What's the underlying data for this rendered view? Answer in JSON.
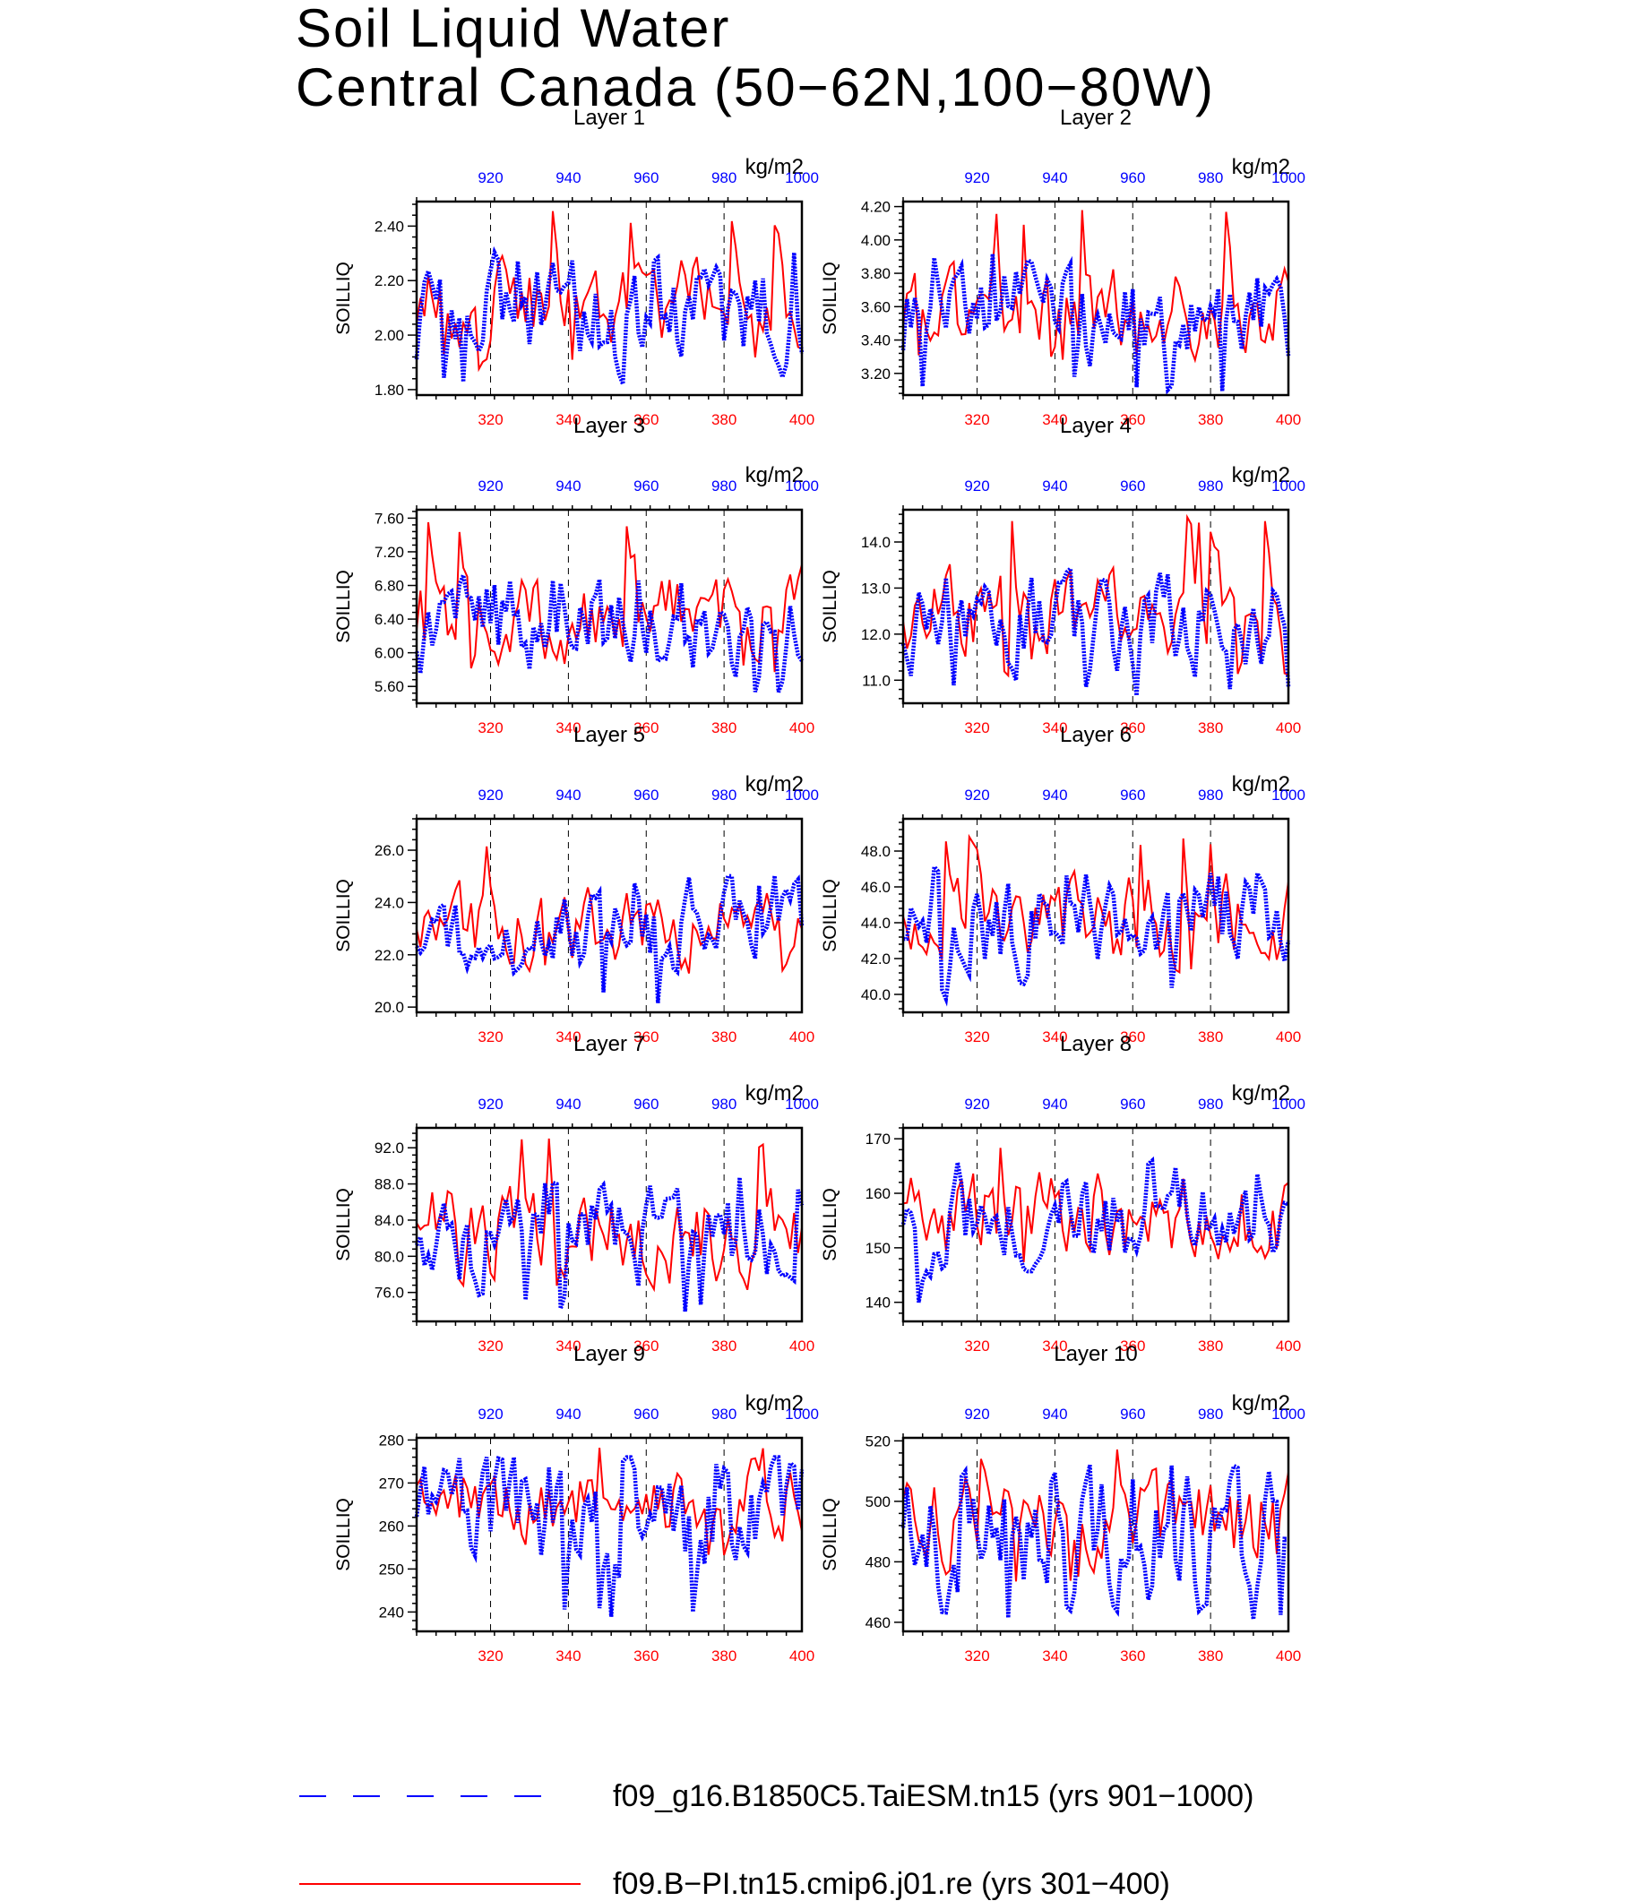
{
  "figure": {
    "title_line1": "Soil Liquid Water",
    "title_line2": "Central Canada (50−62N,100−80W)",
    "colors": {
      "series_a": "#0000ff",
      "series_b": "#ff0000"
    }
  },
  "legend": [
    {
      "label": "f09_g16.B1850C5.TaiESM.tn15 (yrs 901−1000)",
      "color": "#0000ff",
      "style": "dashed"
    },
    {
      "label": "f09.B−PI.tn15.cmip6.j01.re (yrs 301−400)",
      "color": "#ff0000",
      "style": "solid"
    }
  ],
  "chart_data": [
    {
      "type": "line",
      "title": "Layer 1",
      "ylabel": "SOILLIQ",
      "units": "kg/m2",
      "x_bottom": {
        "range": [
          301,
          400
        ],
        "ticks": [
          "320",
          "340",
          "360",
          "380",
          "400"
        ]
      },
      "x_top": {
        "range": [
          901,
          1000
        ],
        "ticks": [
          "920",
          "940",
          "960",
          "980",
          "1000"
        ]
      },
      "ylim": [
        1.78,
        2.49
      ],
      "yticks": [
        "1.80",
        "2.00",
        "2.20",
        "2.40"
      ],
      "series": [
        {
          "mean": 2.07,
          "amp": 0.11,
          "lo": 1.82,
          "hi": 2.31,
          "seed": 11
        },
        {
          "mean": 2.12,
          "amp": 0.09,
          "lo": 1.86,
          "hi": 2.46,
          "seed": 101
        }
      ]
    },
    {
      "type": "line",
      "title": "Layer 2",
      "ylabel": "SOILLIQ",
      "units": "kg/m2",
      "x_bottom": {
        "range": [
          301,
          400
        ],
        "ticks": [
          "320",
          "340",
          "360",
          "380",
          "400"
        ]
      },
      "x_top": {
        "range": [
          901,
          1000
        ],
        "ticks": [
          "920",
          "940",
          "960",
          "980",
          "1000"
        ]
      },
      "ylim": [
        3.07,
        4.23
      ],
      "yticks": [
        "3.20",
        "3.40",
        "3.60",
        "3.80",
        "4.00",
        "4.20"
      ],
      "series": [
        {
          "mean": 3.55,
          "amp": 0.17,
          "lo": 3.09,
          "hi": 3.92,
          "seed": 12
        },
        {
          "mean": 3.58,
          "amp": 0.15,
          "lo": 3.28,
          "hi": 4.19,
          "seed": 102
        }
      ]
    },
    {
      "type": "line",
      "title": "Layer 3",
      "ylabel": "SOILLIQ",
      "units": "kg/m2",
      "x_bottom": {
        "range": [
          301,
          400
        ],
        "ticks": [
          "320",
          "340",
          "360",
          "380",
          "400"
        ]
      },
      "x_top": {
        "range": [
          901,
          1000
        ],
        "ticks": [
          "920",
          "940",
          "960",
          "980",
          "1000"
        ]
      },
      "ylim": [
        5.4,
        7.7
      ],
      "yticks": [
        "5.60",
        "6.00",
        "6.40",
        "6.80",
        "7.20",
        "7.60"
      ],
      "series": [
        {
          "mean": 6.35,
          "amp": 0.32,
          "lo": 5.45,
          "hi": 6.95,
          "seed": 13
        },
        {
          "mean": 6.4,
          "amp": 0.3,
          "lo": 5.75,
          "hi": 7.6,
          "seed": 103
        }
      ]
    },
    {
      "type": "line",
      "title": "Layer 4",
      "ylabel": "SOILLIQ",
      "units": "kg/m2",
      "x_bottom": {
        "range": [
          301,
          400
        ],
        "ticks": [
          "320",
          "340",
          "360",
          "380",
          "400"
        ]
      },
      "x_top": {
        "range": [
          901,
          1000
        ],
        "ticks": [
          "920",
          "940",
          "960",
          "980",
          "1000"
        ]
      },
      "ylim": [
        10.5,
        14.7
      ],
      "yticks": [
        "11.0",
        "12.0",
        "13.0",
        "14.0"
      ],
      "series": [
        {
          "mean": 12.3,
          "amp": 0.6,
          "lo": 10.6,
          "hi": 13.5,
          "seed": 14
        },
        {
          "mean": 12.4,
          "amp": 0.55,
          "lo": 11.1,
          "hi": 14.6,
          "seed": 104
        }
      ]
    },
    {
      "type": "line",
      "title": "Layer 5",
      "ylabel": "SOILLIQ",
      "units": "kg/m2",
      "x_bottom": {
        "range": [
          301,
          400
        ],
        "ticks": [
          "320",
          "340",
          "360",
          "380",
          "400"
        ]
      },
      "x_top": {
        "range": [
          901,
          1000
        ],
        "ticks": [
          "920",
          "940",
          "960",
          "980",
          "1000"
        ]
      },
      "ylim": [
        19.8,
        27.2
      ],
      "yticks": [
        "20.0",
        "22.0",
        "24.0",
        "26.0"
      ],
      "series": [
        {
          "mean": 22.9,
          "amp": 0.9,
          "lo": 20.1,
          "hi": 25.2,
          "seed": 15
        },
        {
          "mean": 23.0,
          "amp": 0.85,
          "lo": 21.2,
          "hi": 26.7,
          "seed": 105
        }
      ]
    },
    {
      "type": "line",
      "title": "Layer 6",
      "ylabel": "SOILLIQ",
      "units": "kg/m2",
      "x_bottom": {
        "range": [
          301,
          400
        ],
        "ticks": [
          "320",
          "340",
          "360",
          "380",
          "400"
        ]
      },
      "x_top": {
        "range": [
          901,
          1000
        ],
        "ticks": [
          "920",
          "940",
          "960",
          "980",
          "1000"
        ]
      },
      "ylim": [
        39.0,
        49.8
      ],
      "yticks": [
        "40.0",
        "42.0",
        "44.0",
        "46.0",
        "48.0"
      ],
      "series": [
        {
          "mean": 43.8,
          "amp": 1.6,
          "lo": 39.7,
          "hi": 47.4,
          "seed": 16
        },
        {
          "mean": 44.1,
          "amp": 1.5,
          "lo": 41.2,
          "hi": 49.3,
          "seed": 106
        }
      ]
    },
    {
      "type": "line",
      "title": "Layer 7",
      "ylabel": "SOILLIQ",
      "units": "kg/m2",
      "x_bottom": {
        "range": [
          301,
          400
        ],
        "ticks": [
          "320",
          "340",
          "360",
          "380",
          "400"
        ]
      },
      "x_top": {
        "range": [
          901,
          1000
        ],
        "ticks": [
          "920",
          "940",
          "960",
          "980",
          "1000"
        ]
      },
      "ylim": [
        72.8,
        94.2
      ],
      "yticks": [
        "76.0",
        "80.0",
        "84.0",
        "88.0",
        "92.0"
      ],
      "series": [
        {
          "mean": 82.0,
          "amp": 3.2,
          "lo": 73.8,
          "hi": 88.8,
          "seed": 17
        },
        {
          "mean": 82.6,
          "amp": 2.9,
          "lo": 76.2,
          "hi": 93.1,
          "seed": 107
        }
      ]
    },
    {
      "type": "line",
      "title": "Layer 8",
      "ylabel": "SOILLIQ",
      "units": "kg/m2",
      "x_bottom": {
        "range": [
          301,
          400
        ],
        "ticks": [
          "320",
          "340",
          "360",
          "380",
          "400"
        ]
      },
      "x_top": {
        "range": [
          901,
          1000
        ],
        "ticks": [
          "920",
          "940",
          "960",
          "980",
          "1000"
        ]
      },
      "ylim": [
        136.5,
        172
      ],
      "yticks": [
        "140",
        "150",
        "160",
        "170"
      ],
      "series": [
        {
          "mean": 154.5,
          "amp": 5.0,
          "lo": 138.0,
          "hi": 166.0,
          "seed": 18
        },
        {
          "mean": 155.5,
          "amp": 4.6,
          "lo": 145.0,
          "hi": 170.5,
          "seed": 108
        }
      ]
    },
    {
      "type": "line",
      "title": "Layer 9",
      "ylabel": "SOILLIQ",
      "units": "kg/m2",
      "x_bottom": {
        "range": [
          301,
          400
        ],
        "ticks": [
          "320",
          "340",
          "360",
          "380",
          "400"
        ]
      },
      "x_top": {
        "range": [
          901,
          1000
        ],
        "ticks": [
          "920",
          "940",
          "960",
          "980",
          "1000"
        ]
      },
      "ylim": [
        235.5,
        280.5
      ],
      "yticks": [
        "240",
        "250",
        "260",
        "270",
        "280"
      ],
      "series": [
        {
          "mean": 261.0,
          "amp": 7.5,
          "lo": 237.0,
          "hi": 276.0,
          "seed": 19
        },
        {
          "mean": 265.5,
          "amp": 5.0,
          "lo": 253.0,
          "hi": 278.5,
          "seed": 109
        }
      ]
    },
    {
      "type": "line",
      "title": "Layer 10",
      "ylabel": "SOILLIQ",
      "units": "kg/m2",
      "x_bottom": {
        "range": [
          301,
          400
        ],
        "ticks": [
          "320",
          "340",
          "360",
          "380",
          "400"
        ]
      },
      "x_top": {
        "range": [
          901,
          1000
        ],
        "ticks": [
          "920",
          "940",
          "960",
          "980",
          "1000"
        ]
      },
      "ylim": [
        457,
        521
      ],
      "yticks": [
        "460",
        "480",
        "500",
        "520"
      ],
      "series": [
        {
          "mean": 487.0,
          "amp": 12.0,
          "lo": 460.0,
          "hi": 512.0,
          "seed": 20
        },
        {
          "mean": 492.0,
          "amp": 9.0,
          "lo": 472.0,
          "hi": 518.0,
          "seed": 110
        }
      ]
    }
  ]
}
